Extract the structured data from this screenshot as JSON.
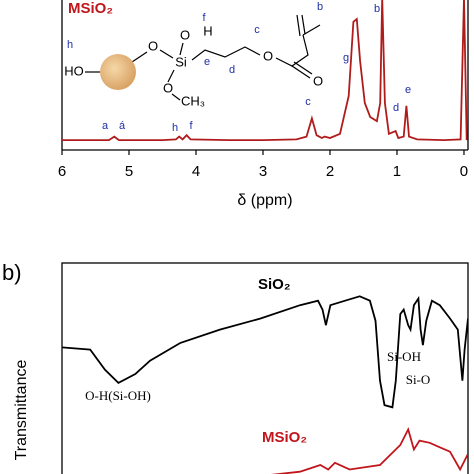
{
  "chart_data": [
    {
      "type": "line",
      "title": "MSiO₂",
      "xlabel": "δ (ppm)",
      "xlim": [
        6.0,
        -0.06
      ],
      "xticks": [
        6,
        5,
        4,
        3,
        2,
        1,
        0
      ],
      "ylim": [
        0,
        1
      ],
      "series": [
        {
          "color": "#b01c1c",
          "x": [
            6.0,
            5.5,
            5.3,
            5.22,
            5.15,
            4.5,
            4.3,
            4.25,
            4.2,
            4.14,
            4.08,
            3.5,
            3.0,
            2.5,
            2.35,
            2.27,
            2.2,
            2.12,
            2.08,
            2.0,
            1.85,
            1.72,
            1.65,
            1.6,
            1.55,
            1.48,
            1.4,
            1.3,
            1.25,
            1.22,
            1.18,
            1.12,
            1.02,
            0.98,
            0.9,
            0.86,
            0.82,
            0.7,
            0.3,
            0.05,
            0.0,
            -0.04
          ],
          "values": [
            0.035,
            0.035,
            0.035,
            0.06,
            0.035,
            0.035,
            0.04,
            0.06,
            0.04,
            0.07,
            0.04,
            0.035,
            0.035,
            0.04,
            0.06,
            0.19,
            0.07,
            0.05,
            0.06,
            0.05,
            0.08,
            0.35,
            0.88,
            0.9,
            0.6,
            0.3,
            0.2,
            0.17,
            0.3,
            1.05,
            0.3,
            0.08,
            0.1,
            0.05,
            0.06,
            0.28,
            0.06,
            0.04,
            0.035,
            0.04,
            1.05,
            0.035
          ]
        }
      ],
      "annotations": [
        "a",
        "á",
        "h",
        "f",
        "c",
        "g",
        "b",
        "d",
        "e"
      ],
      "molecule_labels": [
        "h",
        "HO",
        "O",
        "Si",
        "O",
        "H",
        "f",
        "O",
        "CH₃",
        "e",
        "d",
        "c",
        "O",
        "O",
        "b"
      ]
    },
    {
      "type": "line",
      "panel_label": "b)",
      "ylabel": "Transmittance",
      "xlim": [
        4000,
        400
      ],
      "ylim": [
        0,
        1
      ],
      "series": [
        {
          "name": "SiO₂",
          "color": "#000000",
          "x": [
            4000,
            3750,
            3620,
            3500,
            3350,
            3220,
            2950,
            2600,
            2240,
            1890,
            1730,
            1690,
            1660,
            1620,
            1490,
            1360,
            1270,
            1220,
            1180,
            1140,
            1070,
            1040,
            1000,
            970,
            930,
            910,
            880,
            840,
            820,
            800,
            770,
            720,
            650,
            560,
            490,
            450,
            430,
            400
          ],
          "values": [
            0.62,
            0.61,
            0.52,
            0.46,
            0.5,
            0.56,
            0.64,
            0.7,
            0.75,
            0.81,
            0.83,
            0.79,
            0.72,
            0.81,
            0.83,
            0.85,
            0.83,
            0.74,
            0.47,
            0.36,
            0.35,
            0.47,
            0.77,
            0.79,
            0.72,
            0.7,
            0.81,
            0.84,
            0.7,
            0.63,
            0.74,
            0.83,
            0.81,
            0.75,
            0.7,
            0.47,
            0.61,
            0.75
          ]
        },
        {
          "name": "MSiO₂",
          "color": "#c0161c",
          "x": [
            2420,
            1890,
            1710,
            1640,
            1580,
            1450,
            1180,
            1000,
            930,
            880,
            830,
            740,
            650,
            560,
            470,
            400
          ],
          "values": [
            0.03,
            0.06,
            0.09,
            0.07,
            0.1,
            0.07,
            0.09,
            0.18,
            0.25,
            0.16,
            0.2,
            0.19,
            0.17,
            0.15,
            0.07,
            0.14
          ]
        }
      ],
      "annotations": [
        "O-H(Si-OH)",
        "Si-OH",
        "Si-O"
      ]
    }
  ]
}
